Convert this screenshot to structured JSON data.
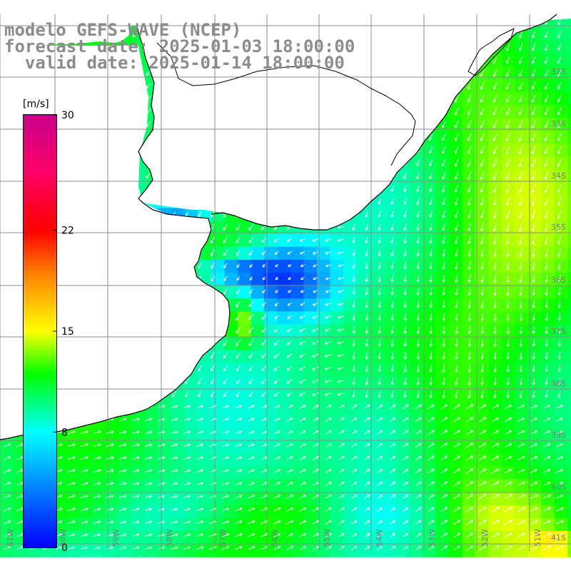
{
  "header": {
    "model_line": "modelo GEFS-WAVE (NCEP)",
    "forecast_line": "forecast date: 2025-01-03 18:00:00",
    "valid_line": "  valid date: 2025-01-14 18:00:00"
  },
  "colorbar": {
    "unit": "[m/s]",
    "ticks": [
      {
        "value": 30,
        "label": "30"
      },
      {
        "value": 22,
        "label": "22"
      },
      {
        "value": 15,
        "label": "15"
      },
      {
        "value": 8,
        "label": "8"
      },
      {
        "value": 0,
        "label": "0"
      }
    ],
    "stops": [
      {
        "value": 0,
        "color": "#0000ff"
      },
      {
        "value": 8,
        "color": "#00ffff"
      },
      {
        "value": 12,
        "color": "#00ff00"
      },
      {
        "value": 15,
        "color": "#ffff00"
      },
      {
        "value": 19,
        "color": "#ff8000"
      },
      {
        "value": 22,
        "color": "#ff0000"
      },
      {
        "value": 26,
        "color": "#ff0066"
      },
      {
        "value": 30,
        "color": "#c8008c"
      }
    ]
  },
  "map": {
    "lat_labels": [
      "32S",
      "33S",
      "34S",
      "35S",
      "36S",
      "37S",
      "38S",
      "39S",
      "40S",
      "41S"
    ],
    "lon_labels": [
      "61W",
      "60W",
      "59W",
      "58W",
      "57W",
      "56W",
      "55W",
      "54W",
      "53W",
      "52W",
      "51W"
    ],
    "colors": {
      "land": "#ffffff",
      "grid": "#8c8c8c",
      "coast": "#000000",
      "arrow": "#ffffff"
    }
  }
}
